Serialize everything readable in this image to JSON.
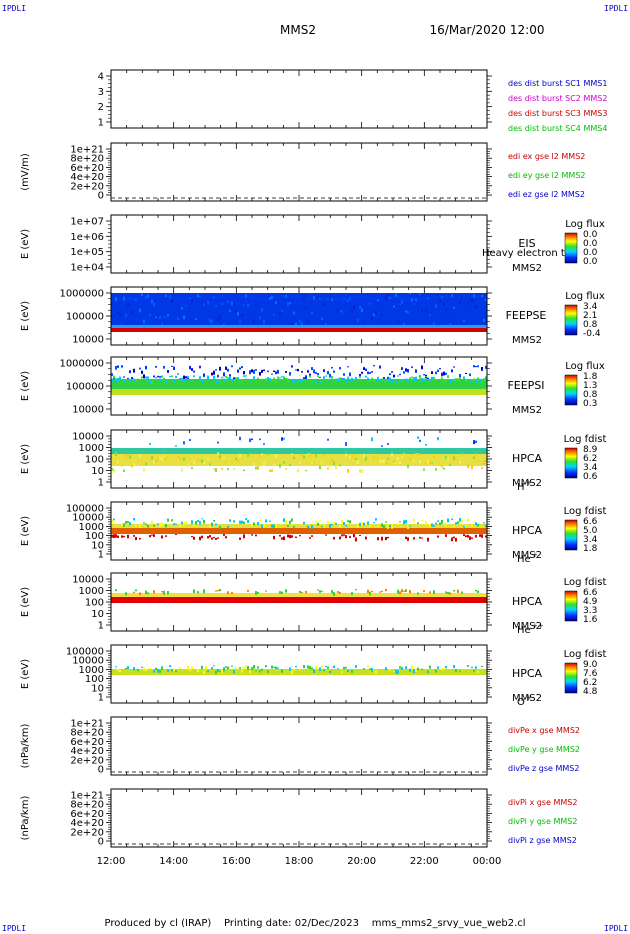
{
  "header": {
    "satellite": "MMS2",
    "datetime": "16/Mar/2020 12:00",
    "corner_label": "IPDLI"
  },
  "footer": {
    "producer": "Produced by cl (IRAP)",
    "printing_date": "Printing date: 02/Dec/2023",
    "filename": "mms_mms2_srvy_vue_web2.cl"
  },
  "chart_data": {
    "type": "multi-panel time series / spectrograms",
    "time_axis": {
      "ticks": [
        "12:00",
        "14:00",
        "16:00",
        "18:00",
        "20:00",
        "22:00",
        "00:00"
      ],
      "start_hour": 12,
      "end_hour": 24
    },
    "panels": [
      {
        "id": "burst",
        "kind": "line",
        "ylabel": "",
        "yticks": [
          "4",
          "3",
          "2",
          "1"
        ],
        "legend": [
          {
            "text": "des dist burst SC1 MMS1",
            "color": "#0000cc"
          },
          {
            "text": "des dist burst SC2 MMS2",
            "color": "#cc00cc"
          },
          {
            "text": "des dist burst SC3 MMS3",
            "color": "#cc0000"
          },
          {
            "text": "des dist burst SC4 MMS4",
            "color": "#00bb00"
          }
        ]
      },
      {
        "id": "edi",
        "kind": "line",
        "ylabel": "(mV/m)",
        "yticks": [
          "1e+21",
          "8e+20",
          "6e+20",
          "4e+20",
          "2e+20",
          "0"
        ],
        "legend": [
          {
            "text": "edi ex gse l2 MMS2",
            "color": "#cc0000"
          },
          {
            "text": "edi ey gse l2 MMS2",
            "color": "#00bb00"
          },
          {
            "text": "edi ez gse l2 MMS2",
            "color": "#0000cc"
          }
        ]
      },
      {
        "id": "eis",
        "kind": "spectrogram",
        "ylabel": "E (eV)",
        "yticks": [
          "1e+07",
          "1e+06",
          "1e+05",
          "1e+04"
        ],
        "instrument": [
          "EIS",
          "MMS2"
        ],
        "overlay_text": "Heavy electron to",
        "colorbar": {
          "title": "Log flux",
          "ticks": [
            "0.0",
            "0.0",
            "0.0",
            "0.0"
          ]
        }
      },
      {
        "id": "feepse",
        "kind": "spectrogram",
        "ylabel": "E (eV)",
        "yticks": [
          "1000000",
          "100000",
          "10000"
        ],
        "instrument": [
          "FEEPSE",
          "MMS2"
        ],
        "colorbar": {
          "title": "Log flux",
          "ticks": [
            "3.4",
            "2.1",
            "0.8",
            "-0.4"
          ]
        }
      },
      {
        "id": "feepsi",
        "kind": "spectrogram",
        "ylabel": "E (eV)",
        "yticks": [
          "1000000",
          "100000",
          "10000"
        ],
        "instrument": [
          "FEEPSI",
          "MMS2"
        ],
        "colorbar": {
          "title": "Log flux",
          "ticks": [
            "1.8",
            "1.3",
            "0.8",
            "0.3"
          ]
        }
      },
      {
        "id": "hpca_h",
        "kind": "spectrogram",
        "ylabel": "E (eV)",
        "yticks": [
          "10000",
          "1000",
          "100",
          "10",
          "1"
        ],
        "instrument": [
          "HPCA",
          "MMS2"
        ],
        "species": "H",
        "species_charge": "+",
        "colorbar": {
          "title": "Log fdist",
          "ticks": [
            "8.9",
            "6.2",
            "3.4",
            "0.6"
          ]
        }
      },
      {
        "id": "hpca_he",
        "kind": "spectrogram",
        "ylabel": "E (eV)",
        "yticks": [
          "100000",
          "10000",
          "1000",
          "100",
          "10",
          "1"
        ],
        "instrument": [
          "HPCA",
          "MMS2"
        ],
        "species": "He",
        "species_charge": "+",
        "colorbar": {
          "title": "Log fdist",
          "ticks": [
            "6.6",
            "5.0",
            "3.4",
            "1.8"
          ]
        }
      },
      {
        "id": "hpca_he2",
        "kind": "spectrogram",
        "ylabel": "E (eV)",
        "yticks": [
          "10000",
          "1000",
          "100",
          "10",
          "1"
        ],
        "instrument": [
          "HPCA",
          "MMS2"
        ],
        "species": "He",
        "species_charge": "++",
        "colorbar": {
          "title": "Log fdist",
          "ticks": [
            "6.6",
            "4.9",
            "3.3",
            "1.6"
          ]
        }
      },
      {
        "id": "hpca_o",
        "kind": "spectrogram",
        "ylabel": "E (eV)",
        "yticks": [
          "100000",
          "10000",
          "1000",
          "100",
          "10",
          "1"
        ],
        "instrument": [
          "HPCA",
          "MMS2"
        ],
        "species": "O",
        "species_charge": "+",
        "colorbar": {
          "title": "Log fdist",
          "ticks": [
            "9.0",
            "7.6",
            "6.2",
            "4.8"
          ]
        }
      },
      {
        "id": "divpe",
        "kind": "line",
        "ylabel": "(nPa/km)",
        "yticks": [
          "1e+21",
          "8e+20",
          "6e+20",
          "4e+20",
          "2e+20",
          "0"
        ],
        "legend": [
          {
            "text": "divPe x gse MMS2",
            "color": "#cc0000"
          },
          {
            "text": "divPe y gse MMS2",
            "color": "#00bb00"
          },
          {
            "text": "divPe z gse MMS2",
            "color": "#0000cc"
          }
        ]
      },
      {
        "id": "divpi",
        "kind": "line",
        "ylabel": "(nPa/km)",
        "yticks": [
          "1e+21",
          "8e+20",
          "6e+20",
          "4e+20",
          "2e+20",
          "0"
        ],
        "legend": [
          {
            "text": "divPi x gse MMS2",
            "color": "#cc0000"
          },
          {
            "text": "divPi y gse MMS2",
            "color": "#00bb00"
          },
          {
            "text": "divPi z gse MMS2",
            "color": "#0000cc"
          }
        ]
      }
    ]
  }
}
